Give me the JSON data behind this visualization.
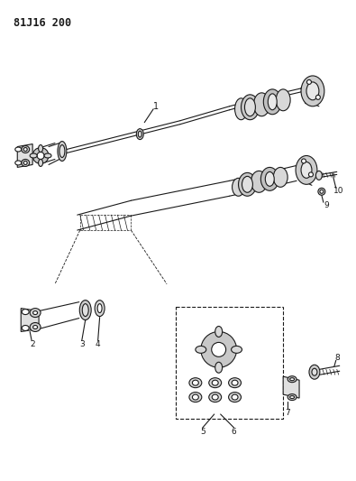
{
  "title": "81J16 200",
  "bg_color": "#ffffff",
  "line_color": "#1a1a1a",
  "fig_width": 3.95,
  "fig_height": 5.33,
  "dpi": 100
}
